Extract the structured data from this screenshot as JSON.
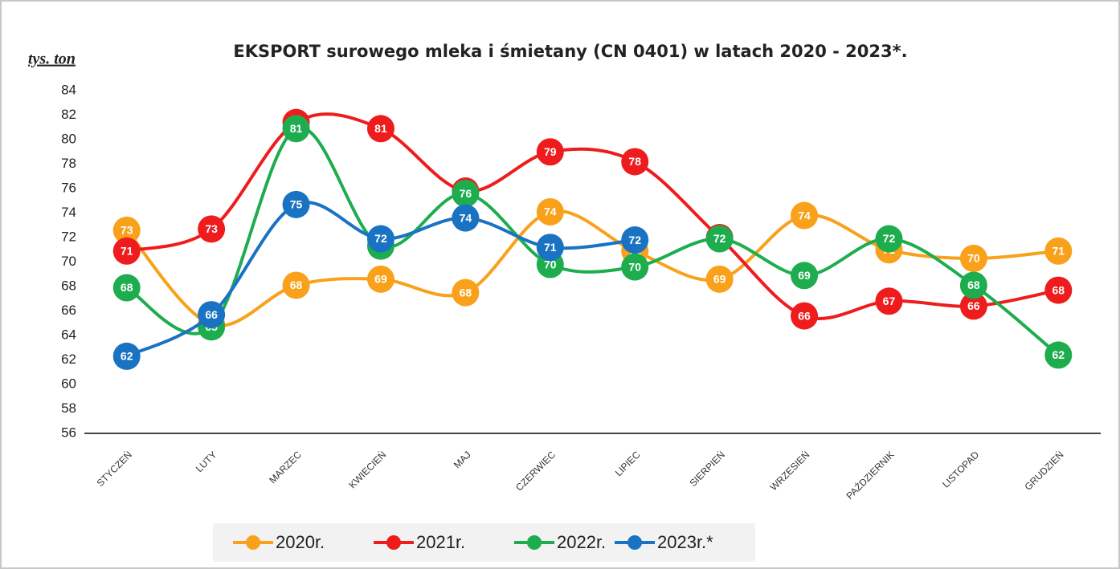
{
  "chart_data": {
    "type": "line",
    "title": "EKSPORT surowego mleka i śmietany (CN 0401) w latach 2020 - 2023*.",
    "y_label": "tys. ton",
    "categories": [
      "STYCZEŃ",
      "LUTY",
      "MARZEC",
      "KWIECIEŃ",
      "MAJ",
      "CZERWIEC",
      "LIPIEC",
      "SIERPIEŃ",
      "WRZESIEŃ",
      "PAŹDZIERNIK",
      "LISTOPAD",
      "GRUDZIEŃ"
    ],
    "ylim": [
      56,
      84
    ],
    "yticks": [
      56,
      58,
      60,
      62,
      64,
      66,
      68,
      70,
      72,
      74,
      76,
      78,
      80,
      82,
      84
    ],
    "grid": false,
    "legend": "bottom",
    "series": [
      {
        "name": "2020r.",
        "color": "#f9a11b",
        "values": [
          72.6,
          64.9,
          68.1,
          68.6,
          67.5,
          74.1,
          70.9,
          68.6,
          73.8,
          71.0,
          70.3,
          70.9
        ],
        "value_labels": [
          "73",
          "65",
          "68",
          "69",
          "68",
          "74",
          "71",
          "69",
          "74",
          "71",
          "70",
          "71"
        ]
      },
      {
        "name": "2021r.",
        "color": "#ee1c1c",
        "values": [
          70.9,
          72.7,
          81.4,
          80.9,
          75.8,
          79.0,
          78.2,
          72.0,
          65.6,
          66.8,
          66.4,
          67.7
        ],
        "value_labels": [
          "71",
          "73",
          "81",
          "81",
          "76",
          "79",
          "78",
          "72",
          "66",
          "67",
          "66",
          "68"
        ]
      },
      {
        "name": "2022r.",
        "color": "#1ead4e",
        "values": [
          67.9,
          64.7,
          80.9,
          71.3,
          75.6,
          69.8,
          69.6,
          71.9,
          68.9,
          71.9,
          68.1,
          62.4
        ],
        "value_labels": [
          "68",
          "65",
          "81",
          "71",
          "76",
          "70",
          "70",
          "72",
          "69",
          "72",
          "68",
          "62"
        ]
      },
      {
        "name": "2023r.*",
        "color": "#1a73c2",
        "values": [
          62.3,
          65.7,
          74.7,
          71.9,
          73.6,
          71.2,
          71.8,
          null,
          null,
          null,
          null,
          null
        ],
        "value_labels": [
          "62",
          "66",
          "75",
          "72",
          "74",
          "71",
          "72",
          null,
          null,
          null,
          null,
          null
        ]
      }
    ]
  }
}
